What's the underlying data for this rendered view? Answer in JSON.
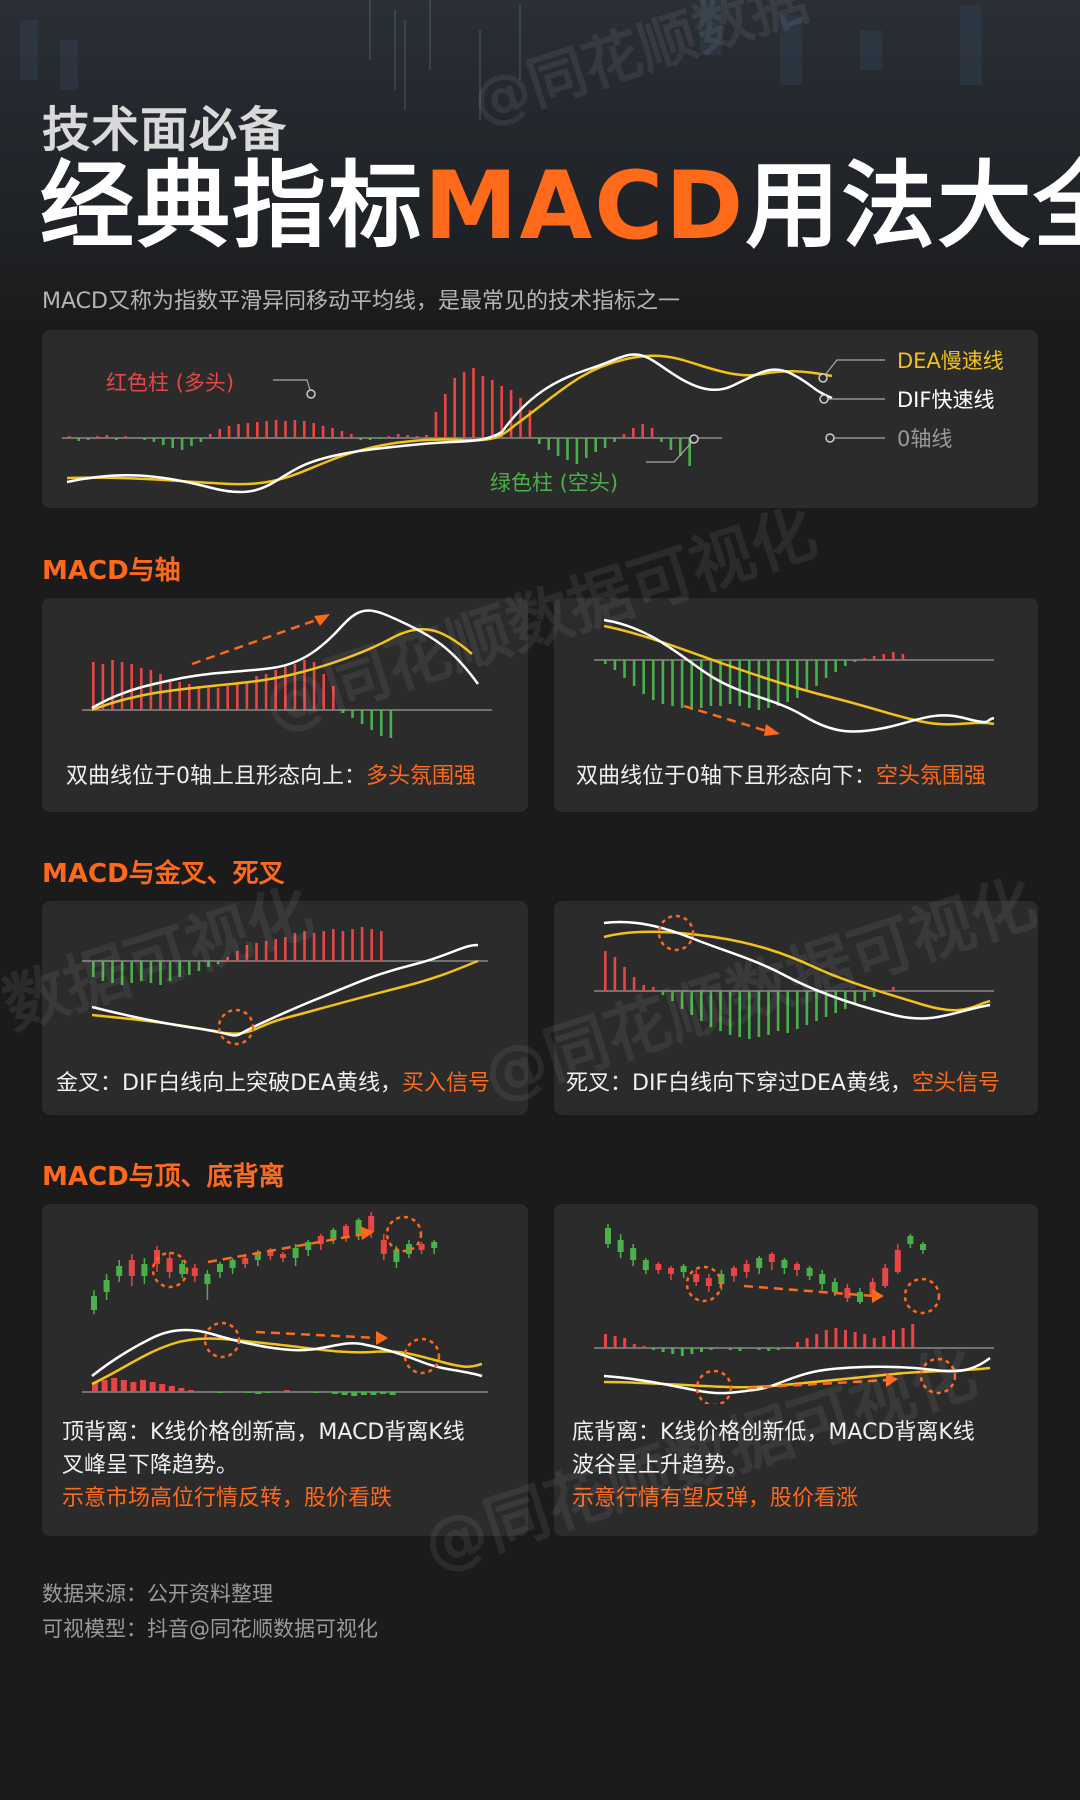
{
  "header": {
    "pretitle": "技术面必备",
    "title_part1": "经典指标",
    "title_accent": "MACD",
    "title_part2": "用法大全",
    "subtitle": "MACD又称为指数平滑异同移动平均线，是最常见的技术指标之一"
  },
  "watermark": {
    "text_short": "@同花顺数据",
    "text_long": "@同花顺数据可视化",
    "text_mid": "数据可视化",
    "text_left": "数据可视化",
    "text_mid2": "@同花顺数据可视化"
  },
  "legend": {
    "red_bar": "红色柱 (多头)",
    "green_bar": "绿色柱 (空头)",
    "dea": "DEA慢速线",
    "dif": "DIF快速线",
    "zero_axis": "0轴线"
  },
  "sections": {
    "axis": {
      "title": "MACD与轴",
      "left": {
        "text": "双曲线位于0轴上且形态向上：",
        "highlight": "多头氛围强"
      },
      "right": {
        "text": "双曲线位于0轴下且形态向下：",
        "highlight": "空头氛围强"
      }
    },
    "cross": {
      "title": "MACD与金叉、死叉",
      "left": {
        "text": "金叉：DIF白线向上突破DEA黄线，",
        "highlight": "买入信号"
      },
      "right": {
        "text": "死叉：DIF白线向下穿过DEA黄线，",
        "highlight": "空头信号"
      }
    },
    "divergence": {
      "title": "MACD与顶、底背离",
      "left": {
        "line1": "顶背离：K线价格创新高，MACD背离K线",
        "line2": "叉峰呈下降趋势。",
        "highlight": "示意市场高位行情反转，股价看跌"
      },
      "right": {
        "line1": "底背离：K线价格创新低，MACD背离K线",
        "line2": "波谷呈上升趋势。",
        "highlight": "示意行情有望反弹，股价看涨"
      }
    }
  },
  "footer": {
    "source": "数据来源：公开资料整理",
    "model": "可视模型：抖音@同花顺数据可视化"
  },
  "colors": {
    "accent": "#ff6a1a",
    "red": "#e84545",
    "green": "#49b04a",
    "dea": "#f2c21b",
    "dif": "#ffffff"
  }
}
